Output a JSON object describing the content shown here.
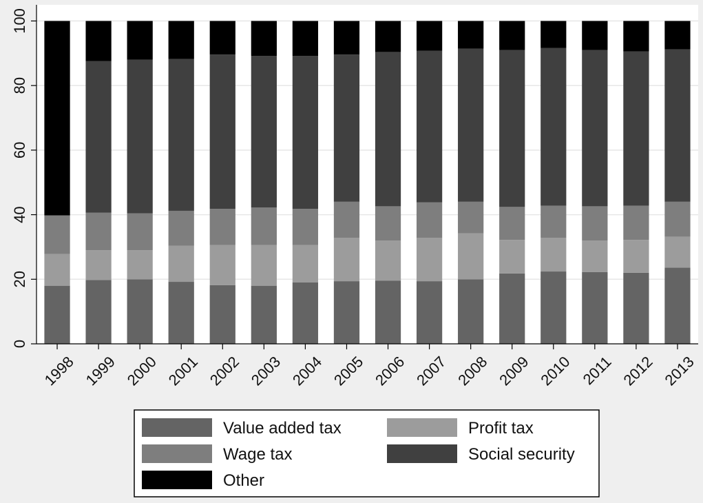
{
  "chart_data": {
    "type": "bar",
    "stacked": true,
    "categories": [
      "1998",
      "1999",
      "2000",
      "2001",
      "2002",
      "2003",
      "2004",
      "2005",
      "2006",
      "2007",
      "2008",
      "2009",
      "2010",
      "2011",
      "2012",
      "2013"
    ],
    "series": [
      {
        "name": "Value added tax",
        "color": "#646464",
        "values": [
          18.0,
          19.8,
          20.0,
          19.2,
          18.2,
          18.0,
          19.0,
          19.4,
          19.6,
          19.4,
          20.0,
          21.8,
          22.4,
          22.2,
          22.0,
          23.6
        ]
      },
      {
        "name": "Profit tax",
        "color": "#9c9c9c",
        "values": [
          9.8,
          9.2,
          9.0,
          11.2,
          12.4,
          12.6,
          11.6,
          13.4,
          12.4,
          13.4,
          14.2,
          10.4,
          10.4,
          9.8,
          10.2,
          9.6
        ]
      },
      {
        "name": "Wage tax",
        "color": "#7e7e7e",
        "values": [
          12.0,
          11.6,
          11.4,
          10.8,
          11.2,
          11.6,
          11.2,
          11.2,
          10.6,
          11.0,
          9.8,
          10.2,
          10.0,
          10.6,
          10.6,
          10.8
        ]
      },
      {
        "name": "Social security",
        "color": "#404040",
        "values": [
          0,
          47.0,
          47.6,
          47.0,
          47.8,
          47.0,
          47.4,
          45.6,
          47.8,
          47.0,
          47.4,
          48.6,
          48.8,
          48.4,
          47.8,
          47.2
        ]
      },
      {
        "name": "Other",
        "color": "#000000",
        "values": [
          60.2,
          12.4,
          12.0,
          11.8,
          10.4,
          10.8,
          10.8,
          10.4,
          9.6,
          9.2,
          8.6,
          9.0,
          8.4,
          9.0,
          9.4,
          8.8
        ]
      }
    ],
    "legend_order": [
      "Value added tax",
      "Profit tax",
      "Wage tax",
      "Social security",
      "Other"
    ],
    "y_ticks": [
      "0",
      "20",
      "40",
      "60",
      "80",
      "100"
    ],
    "ylim": [
      0,
      105
    ],
    "title": "",
    "xlabel": "",
    "ylabel": "",
    "grid": true,
    "legend_position": "bottom"
  }
}
